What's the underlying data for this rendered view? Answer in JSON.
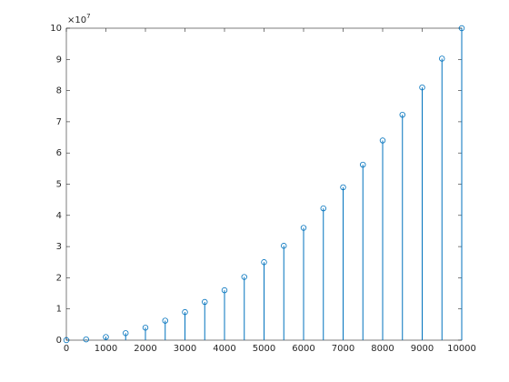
{
  "chart_data": {
    "type": "stem",
    "x": [
      0,
      500,
      1000,
      1500,
      2000,
      2500,
      3000,
      3500,
      4000,
      4500,
      5000,
      5500,
      6000,
      6500,
      7000,
      7500,
      8000,
      8500,
      9000,
      9500,
      10000
    ],
    "values": [
      0,
      0.025,
      0.1,
      0.225,
      0.4,
      0.625,
      0.9,
      1.225,
      1.6,
      2.025,
      2.5,
      3.025,
      3.6,
      4.225,
      4.9,
      5.625,
      6.4,
      7.225,
      8.1,
      9.025,
      10
    ],
    "color": "#0072bd",
    "xlim": [
      0,
      10000
    ],
    "xticks": [
      0,
      1000,
      2000,
      3000,
      4000,
      5000,
      6000,
      7000,
      8000,
      9000,
      10000
    ],
    "ylim": [
      0,
      10
    ],
    "yticks": [
      0,
      1,
      2,
      3,
      4,
      5,
      6,
      7,
      8,
      9,
      10
    ],
    "y_multiplier": "×10",
    "y_multiplier_exponent": "7"
  }
}
